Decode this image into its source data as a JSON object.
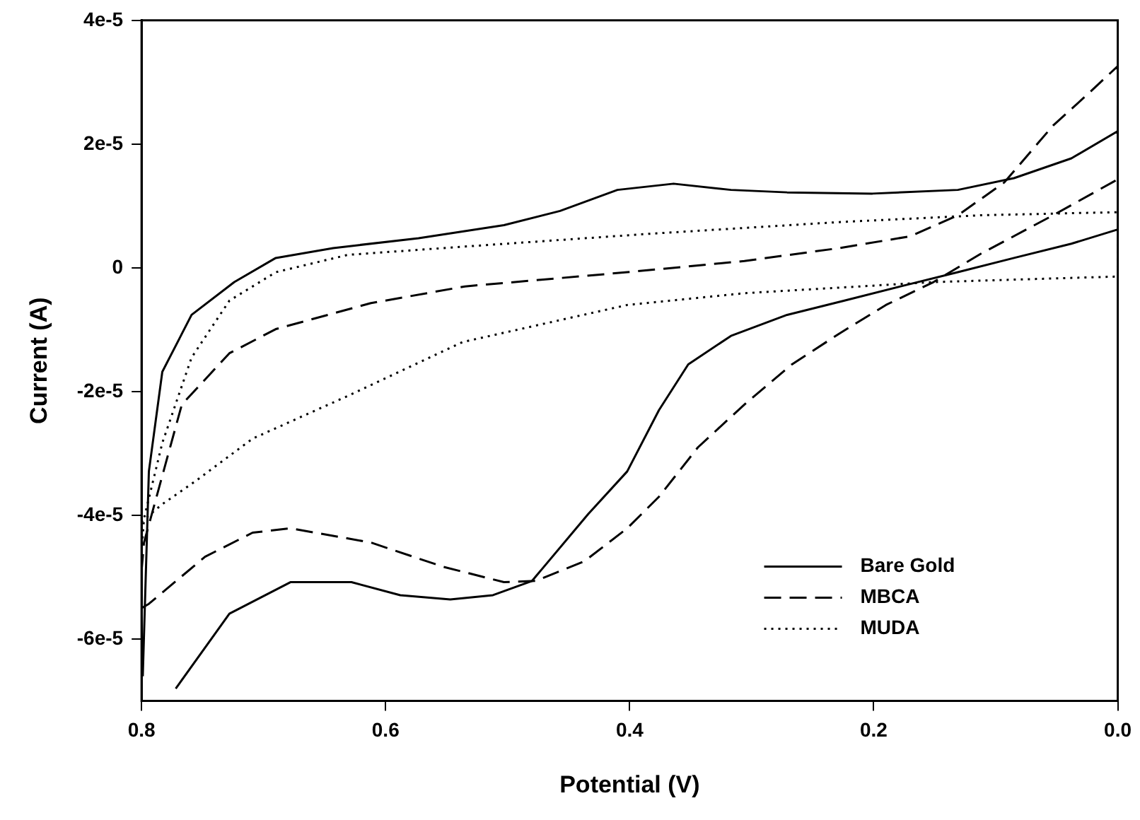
{
  "chart_data": {
    "type": "line",
    "xlabel": "Potential (V)",
    "ylabel": "Current (A)",
    "xlim": [
      0.8,
      0
    ],
    "xticks": [
      0.8,
      0.6,
      0.4,
      0.2,
      {
        "value": 0,
        "label": "0.0"
      }
    ],
    "ylim": [
      -7e-05,
      4e-05
    ],
    "yticks": [
      {
        "value": 4e-05,
        "label": "4e-5"
      },
      {
        "value": 2e-05,
        "label": "2e-5"
      },
      0,
      {
        "value": -2e-05,
        "label": "-2e-5"
      },
      {
        "value": -4e-05,
        "label": "-4e-5"
      },
      {
        "value": -6e-05,
        "label": "-6e-5"
      }
    ],
    "grid": false,
    "legend": "bottom right",
    "marker": "none",
    "series": [
      {
        "name": "Bare Gold",
        "color": "#000000",
        "line_style": "solid",
        "x": [
          0.799,
          0.794,
          0.783,
          0.759,
          0.724,
          0.69,
          0.643,
          0.573,
          0.503,
          0.457,
          0.41,
          0.364,
          0.317,
          0.271,
          0.201,
          0.131,
          0.085,
          0.038,
          0,
          0,
          0.038,
          0.085,
          0.131,
          0.178,
          0.224,
          0.271,
          0.317,
          0.352,
          0.376,
          0.402,
          0.434,
          0.48,
          0.512,
          0.547,
          0.588,
          0.628,
          0.678,
          0.728,
          0.772
        ],
        "values": [
          -6.6e-05,
          -3.29e-05,
          -1.68e-05,
          -7.6e-06,
          -2.3e-06,
          1.6e-06,
          3.2e-06,
          4.8e-06,
          6.9e-06,
          9.2e-06,
          1.26e-05,
          1.36e-05,
          1.26e-05,
          1.22e-05,
          1.2e-05,
          1.26e-05,
          1.45e-05,
          1.77e-05,
          2.21e-05,
          6.2e-06,
          3.9e-06,
          1.6e-06,
          -7e-07,
          -3e-06,
          -5.3e-06,
          -7.6e-06,
          -1.1e-05,
          -1.56e-05,
          -2.3e-05,
          -3.29e-05,
          -3.98e-05,
          -5.06e-05,
          -5.29e-05,
          -5.36e-05,
          -5.29e-05,
          -5.08e-05,
          -5.08e-05,
          -5.59e-05,
          -6.8e-05
        ]
      },
      {
        "name": "MBCA",
        "color": "#000000",
        "line_style": "dashed",
        "x": [
          0.8,
          0.798,
          0.767,
          0.728,
          0.69,
          0.612,
          0.535,
          0.402,
          0.306,
          0.228,
          0.17,
          0.131,
          0.093,
          0.053,
          0.025,
          0,
          0,
          0.053,
          0.112,
          0.151,
          0.19,
          0.228,
          0.267,
          0.306,
          0.344,
          0.376,
          0.402,
          0.437,
          0.477,
          0.503,
          0.553,
          0.612,
          0.678,
          0.709,
          0.748,
          0.794,
          0.8
        ],
        "values": [
          -4.9e-05,
          -4.44e-05,
          -2.21e-05,
          -1.38e-05,
          -9.9e-06,
          -5.7e-06,
          -3e-06,
          -7e-07,
          1.1e-06,
          3.2e-06,
          5.1e-06,
          8.5e-06,
          1.38e-05,
          2.3e-05,
          2.8e-05,
          3.26e-05,
          1.43e-05,
          8.5e-06,
          2.3e-06,
          -2.3e-06,
          -6e-06,
          -1.06e-05,
          -1.56e-05,
          -2.21e-05,
          -2.9e-05,
          -3.7e-05,
          -4.21e-05,
          -4.74e-05,
          -5.06e-05,
          -5.08e-05,
          -4.83e-05,
          -4.44e-05,
          -4.21e-05,
          -4.28e-05,
          -4.67e-05,
          -5.43e-05,
          -5.5e-05
        ]
      },
      {
        "name": "MUDA",
        "color": "#000000",
        "line_style": "dotted",
        "x": [
          0.8,
          0.798,
          0.783,
          0.759,
          0.728,
          0.69,
          0.631,
          0.538,
          0.384,
          0.228,
          0.112,
          0,
          0,
          0.151,
          0.306,
          0.402,
          0.537,
          0.631,
          0.709,
          0.756,
          0.783,
          0.8
        ],
        "values": [
          -4.6e-05,
          -4.05e-05,
          -2.83e-05,
          -1.45e-05,
          -5.3e-06,
          -7e-07,
          2.1e-06,
          3.4e-06,
          5.5e-06,
          7.4e-06,
          8.5e-06,
          9e-06,
          -1.4e-06,
          -2.3e-06,
          -4.1e-06,
          -6e-06,
          -1.2e-05,
          -2.07e-05,
          -2.76e-05,
          -3.45e-05,
          -3.82e-05,
          -4.1e-05
        ]
      }
    ]
  }
}
